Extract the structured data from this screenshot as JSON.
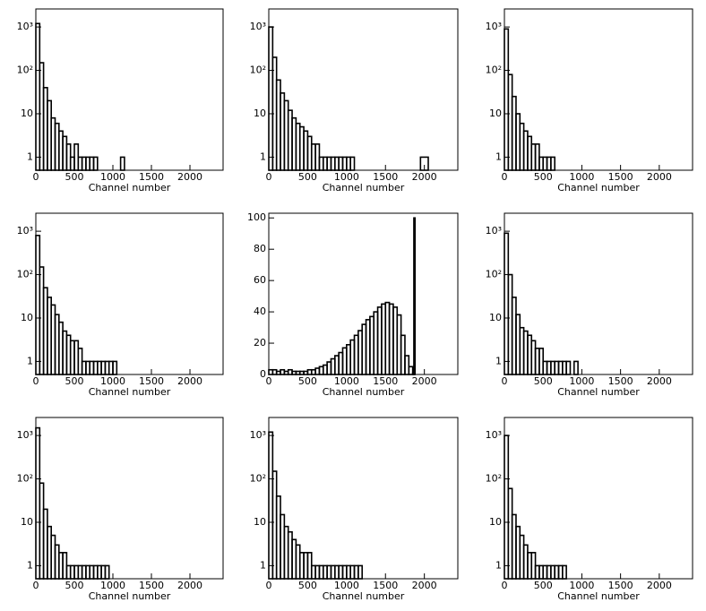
{
  "chart_data": [
    {
      "type": "histogram",
      "xlabel": "Channel number",
      "log_y": true,
      "color": "#000000",
      "bins": [
        0,
        50,
        100,
        150,
        200,
        250,
        300,
        350,
        400,
        450,
        500,
        550,
        600,
        650,
        700,
        750,
        800,
        850,
        900,
        950,
        1000,
        1050,
        1100,
        1150,
        1200
      ],
      "values": [
        1200,
        150,
        40,
        20,
        8,
        6,
        4,
        3,
        2,
        1,
        2,
        1,
        1,
        1,
        1,
        1,
        0,
        0,
        0,
        0,
        0,
        0,
        1,
        0
      ],
      "xlim": [
        0,
        2430
      ],
      "ylim": [
        0.5,
        2600
      ],
      "xticks": [
        0,
        500,
        1000,
        1500,
        2000
      ],
      "yticks": [
        1,
        10,
        {
          "value": 100,
          "label": "10²"
        },
        {
          "value": 1000,
          "label": "10³"
        }
      ]
    },
    {
      "type": "histogram",
      "xlabel": "Channel number",
      "log_y": true,
      "color": "#000000",
      "bins": [
        0,
        50,
        100,
        150,
        200,
        250,
        300,
        350,
        400,
        450,
        500,
        550,
        600,
        650,
        700,
        750,
        800,
        850,
        900,
        950,
        1000,
        1050,
        1100,
        1150,
        1200,
        1950,
        2050
      ],
      "values": [
        1000,
        200,
        60,
        30,
        20,
        12,
        8,
        6,
        5,
        4,
        3,
        2,
        2,
        1,
        1,
        1,
        1,
        1,
        1,
        1,
        1,
        1,
        0,
        0,
        0,
        1
      ],
      "xlim": [
        0,
        2430
      ],
      "ylim": [
        0.5,
        2600
      ],
      "xticks": [
        0,
        500,
        1000,
        1500,
        2000
      ],
      "yticks": [
        1,
        10,
        {
          "value": 100,
          "label": "10²"
        },
        {
          "value": 1000,
          "label": "10³"
        }
      ]
    },
    {
      "type": "histogram",
      "xlabel": "Channel number",
      "log_y": true,
      "color": "#000000",
      "bins": [
        0,
        50,
        100,
        150,
        200,
        250,
        300,
        350,
        400,
        450,
        500,
        550,
        600,
        650,
        700,
        750,
        800,
        850,
        900,
        950,
        1000,
        1050,
        1100,
        1150,
        1200
      ],
      "values": [
        900,
        80,
        25,
        10,
        6,
        4,
        3,
        2,
        2,
        1,
        1,
        1,
        1,
        0,
        0,
        0,
        0,
        0,
        0,
        0,
        0,
        0,
        0,
        0
      ],
      "xlim": [
        0,
        2430
      ],
      "ylim": [
        0.5,
        2600
      ],
      "xticks": [
        0,
        500,
        1000,
        1500,
        2000
      ],
      "yticks": [
        1,
        10,
        {
          "value": 100,
          "label": "10²"
        },
        {
          "value": 1000,
          "label": "10³"
        }
      ]
    },
    {
      "type": "histogram",
      "xlabel": "Channel number",
      "log_y": true,
      "color": "#000000",
      "bins": [
        0,
        50,
        100,
        150,
        200,
        250,
        300,
        350,
        400,
        450,
        500,
        550,
        600,
        650,
        700,
        750,
        800,
        850,
        900,
        950,
        1000,
        1050,
        1100,
        1150,
        1200
      ],
      "values": [
        800,
        150,
        50,
        30,
        20,
        12,
        8,
        5,
        4,
        3,
        3,
        2,
        1,
        1,
        1,
        1,
        1,
        1,
        1,
        1,
        1,
        0,
        0,
        0
      ],
      "xlim": [
        0,
        2430
      ],
      "ylim": [
        0.5,
        2600
      ],
      "xticks": [
        0,
        500,
        1000,
        1500,
        2000
      ],
      "yticks": [
        1,
        10,
        {
          "value": 100,
          "label": "10²"
        },
        {
          "value": 1000,
          "label": "10³"
        }
      ]
    },
    {
      "type": "histogram",
      "xlabel": "Channel number",
      "log_y": false,
      "color": "#000000",
      "bins": [
        0,
        50,
        100,
        150,
        200,
        250,
        300,
        350,
        400,
        450,
        500,
        550,
        600,
        650,
        700,
        750,
        800,
        850,
        900,
        950,
        1000,
        1050,
        1100,
        1150,
        1200,
        1250,
        1300,
        1350,
        1400,
        1450,
        1500,
        1550,
        1600,
        1650,
        1700,
        1750,
        1800,
        1850,
        1865,
        1880
      ],
      "values": [
        3,
        3,
        2,
        3,
        2,
        3,
        2,
        2,
        2,
        2,
        3,
        3,
        4,
        5,
        6,
        8,
        10,
        12,
        14,
        17,
        19,
        22,
        25,
        28,
        32,
        35,
        37,
        40,
        43,
        45,
        46,
        45,
        43,
        38,
        25,
        12,
        5,
        1,
        100
      ],
      "xlim": [
        0,
        2430
      ],
      "ylim": [
        0,
        103
      ],
      "xticks": [
        0,
        500,
        1000,
        1500,
        2000
      ],
      "yticks": [
        0,
        20,
        40,
        60,
        80,
        100
      ]
    },
    {
      "type": "histogram",
      "xlabel": "Channel number",
      "log_y": true,
      "color": "#000000",
      "bins": [
        0,
        50,
        100,
        150,
        200,
        250,
        300,
        350,
        400,
        450,
        500,
        550,
        600,
        650,
        700,
        750,
        800,
        850,
        900,
        950,
        1000,
        1050,
        1100,
        1150,
        1200
      ],
      "values": [
        900,
        100,
        30,
        12,
        6,
        5,
        4,
        3,
        2,
        2,
        1,
        1,
        1,
        1,
        1,
        1,
        1,
        0,
        1,
        0,
        0,
        0,
        0,
        0
      ],
      "xlim": [
        0,
        2430
      ],
      "ylim": [
        0.5,
        2600
      ],
      "xticks": [
        0,
        500,
        1000,
        1500,
        2000
      ],
      "yticks": [
        1,
        10,
        {
          "value": 100,
          "label": "10²"
        },
        {
          "value": 1000,
          "label": "10³"
        }
      ]
    },
    {
      "type": "histogram",
      "xlabel": "Channel number",
      "log_y": true,
      "color": "#000000",
      "bins": [
        0,
        50,
        100,
        150,
        200,
        250,
        300,
        350,
        400,
        450,
        500,
        550,
        600,
        650,
        700,
        750,
        800,
        850,
        900,
        950,
        1000,
        1050,
        1100,
        1150,
        1200
      ],
      "values": [
        1500,
        80,
        20,
        8,
        5,
        3,
        2,
        2,
        1,
        1,
        1,
        1,
        1,
        1,
        1,
        1,
        1,
        1,
        1,
        0,
        0,
        0,
        0,
        0
      ],
      "xlim": [
        0,
        2430
      ],
      "ylim": [
        0.5,
        2600
      ],
      "xticks": [
        0,
        500,
        1000,
        1500,
        2000
      ],
      "yticks": [
        1,
        10,
        {
          "value": 100,
          "label": "10²"
        },
        {
          "value": 1000,
          "label": "10³"
        }
      ]
    },
    {
      "type": "histogram",
      "xlabel": "Channel number",
      "log_y": true,
      "color": "#000000",
      "bins": [
        0,
        50,
        100,
        150,
        200,
        250,
        300,
        350,
        400,
        450,
        500,
        550,
        600,
        650,
        700,
        750,
        800,
        850,
        900,
        950,
        1000,
        1050,
        1100,
        1150,
        1200
      ],
      "values": [
        1200,
        150,
        40,
        15,
        8,
        6,
        4,
        3,
        2,
        2,
        2,
        1,
        1,
        1,
        1,
        1,
        1,
        1,
        1,
        1,
        1,
        1,
        1,
        1
      ],
      "xlim": [
        0,
        2430
      ],
      "ylim": [
        0.5,
        2600
      ],
      "xticks": [
        0,
        500,
        1000,
        1500,
        2000
      ],
      "yticks": [
        1,
        10,
        {
          "value": 100,
          "label": "10²"
        },
        {
          "value": 1000,
          "label": "10³"
        }
      ]
    },
    {
      "type": "histogram",
      "xlabel": "Channel number",
      "log_y": true,
      "color": "#000000",
      "bins": [
        0,
        50,
        100,
        150,
        200,
        250,
        300,
        350,
        400,
        450,
        500,
        550,
        600,
        650,
        700,
        750,
        800,
        850,
        900,
        950,
        1000,
        1050,
        1100,
        1150,
        1200
      ],
      "values": [
        1000,
        60,
        15,
        8,
        5,
        3,
        2,
        2,
        1,
        1,
        1,
        1,
        1,
        1,
        1,
        1,
        0,
        0,
        0,
        0,
        0,
        0,
        0,
        0
      ],
      "xlim": [
        0,
        2430
      ],
      "ylim": [
        0.5,
        2600
      ],
      "xticks": [
        0,
        500,
        1000,
        1500,
        2000
      ],
      "yticks": [
        1,
        10,
        {
          "value": 100,
          "label": "10²"
        },
        {
          "value": 1000,
          "label": "10³"
        }
      ]
    }
  ]
}
